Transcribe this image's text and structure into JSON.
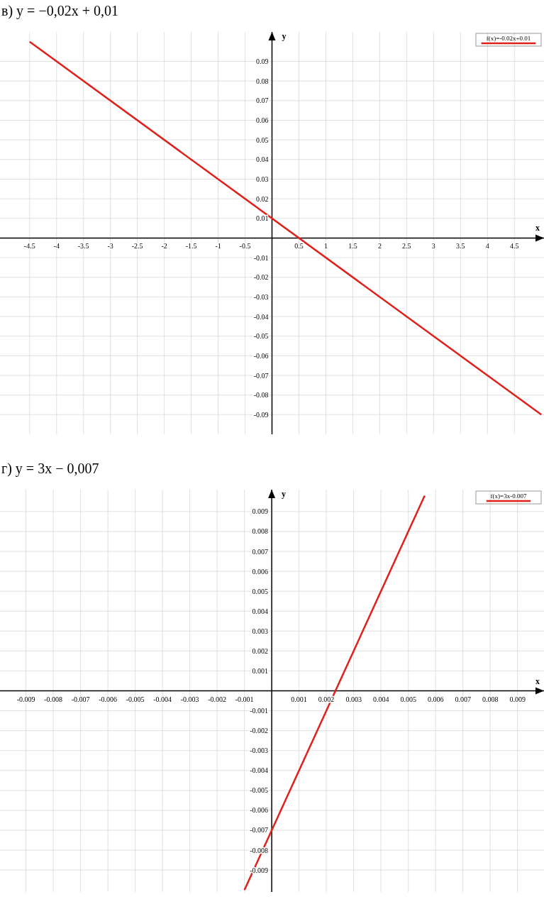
{
  "chart_data": [
    {
      "type": "line",
      "title": "в) y = −0,02x + 0,01",
      "xlabel": "x",
      "ylabel": "y",
      "xlim": [
        -5.05,
        5.05
      ],
      "ylim": [
        -0.1,
        0.105
      ],
      "xticks": [
        -4.5,
        -4,
        -3.5,
        -3,
        -2.5,
        -2,
        -1.5,
        -1,
        -0.5,
        0.5,
        1,
        1.5,
        2,
        2.5,
        3,
        3.5,
        4,
        4.5
      ],
      "yticks": [
        -0.09,
        -0.08,
        -0.07,
        -0.06,
        -0.05,
        -0.04,
        -0.03,
        -0.02,
        -0.01,
        0.01,
        0.02,
        0.03,
        0.04,
        0.05,
        0.06,
        0.07,
        0.08,
        0.09
      ],
      "grid": true,
      "legend": "top right",
      "series": [
        {
          "name": "f(x)=-0.02x+0.01",
          "color": "#e0201b",
          "x": [
            -4.5,
            5
          ],
          "values": [
            0.1,
            -0.09
          ]
        }
      ]
    },
    {
      "type": "line",
      "title": "г) y = 3x − 0,007",
      "xlabel": "x",
      "ylabel": "y",
      "xlim": [
        -0.00995,
        0.00997
      ],
      "ylim": [
        -0.0101,
        0.0101
      ],
      "xticks": [
        -0.009,
        -0.008,
        -0.007,
        -0.006,
        -0.005,
        -0.004,
        -0.003,
        -0.002,
        -0.001,
        0.001,
        0.002,
        0.003,
        0.004,
        0.005,
        0.006,
        0.007,
        0.008,
        0.009
      ],
      "yticks": [
        -0.009,
        -0.008,
        -0.007,
        -0.006,
        -0.005,
        -0.004,
        -0.003,
        -0.002,
        -0.001,
        0.001,
        0.002,
        0.003,
        0.004,
        0.005,
        0.006,
        0.007,
        0.008,
        0.009
      ],
      "grid": true,
      "legend": "top right",
      "series": [
        {
          "name": "f(x)=3x-0.007",
          "color": "#e0201b",
          "x": [
            -0.001,
            0.0056
          ],
          "values": [
            -0.01,
            0.0098
          ]
        }
      ]
    }
  ]
}
